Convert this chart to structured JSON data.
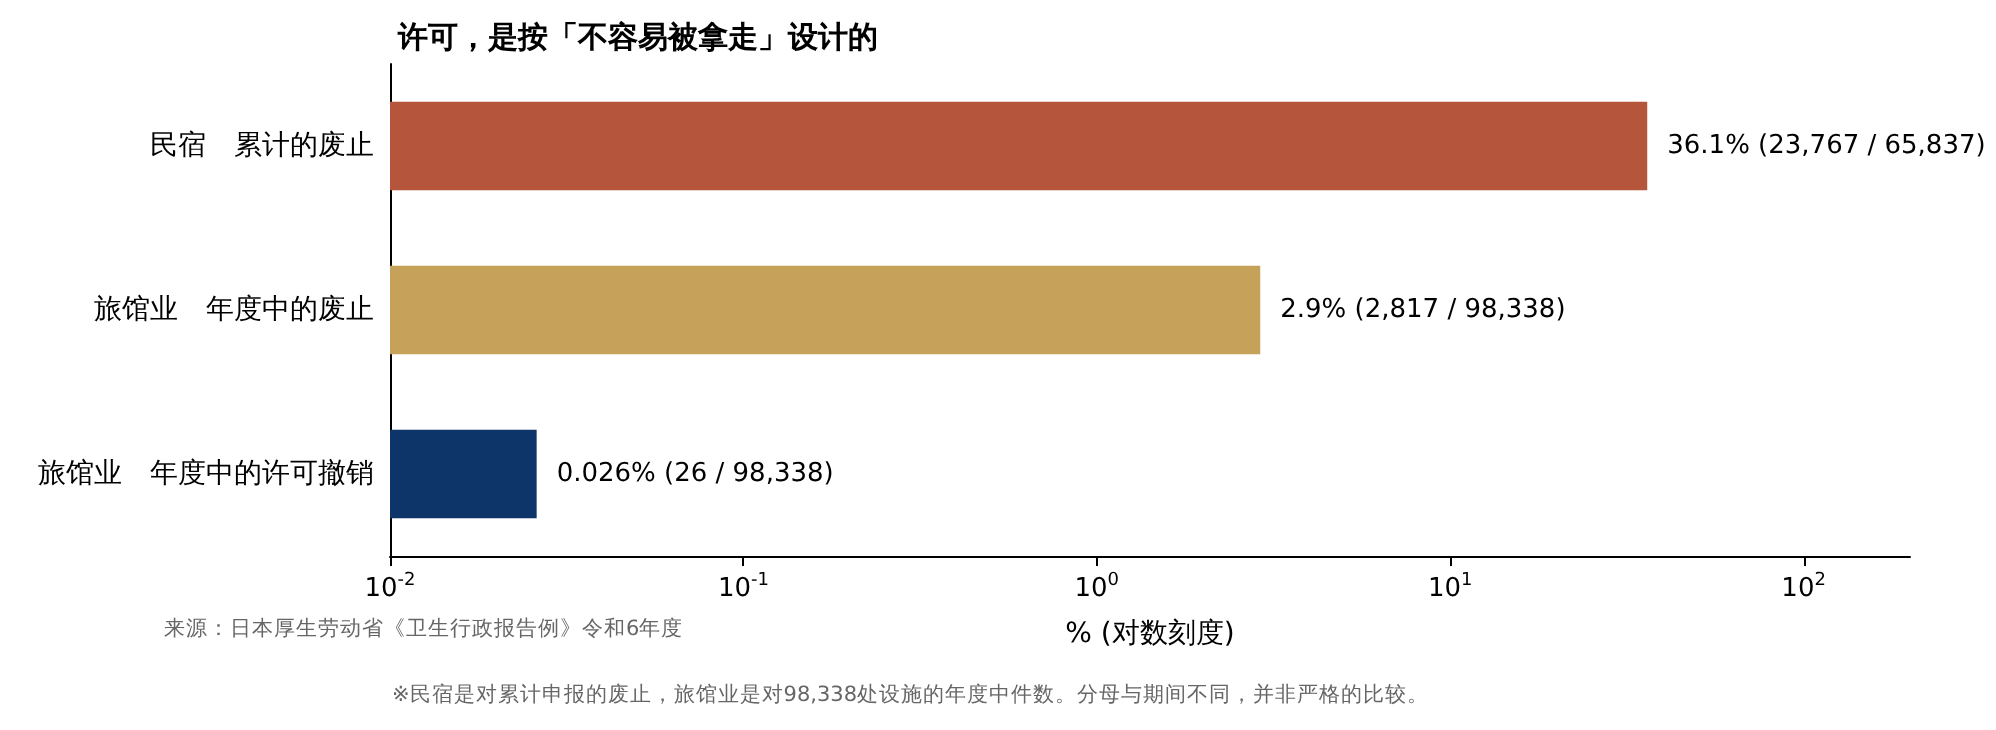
{
  "chart_data": {
    "type": "bar",
    "orientation": "horizontal",
    "title": "许可，是按「不容易被拿走」设计的",
    "categories": [
      "民宿　累计的废止",
      "旅馆业　年度中的废止",
      "旅馆业　年度中的许可撤销"
    ],
    "values": [
      36.1,
      2.9,
      0.026
    ],
    "colors": [
      "#b5553c",
      "#c6a15a",
      "#0e3569"
    ],
    "value_labels": [
      "36.1% (23,767 / 65,837)",
      "2.9% (2,817 / 98,338)",
      "0.026% (26 / 98,338)"
    ],
    "log": "x",
    "xlim": [
      0.01,
      200
    ],
    "xticks": [
      {
        "value": 0.01,
        "label": "10$^{-2}$"
      },
      {
        "value": 0.1,
        "label": "10$^{-1}$"
      },
      {
        "value": 1,
        "label": "10$^{0}$"
      },
      {
        "value": 10,
        "label": "10$^{1}$"
      },
      {
        "value": 100,
        "label": "10$^{2}$"
      }
    ],
    "xlabel": "% (对数刻度)",
    "grid": false,
    "annotations": [
      "来源：日本厚生劳动省《卫生行政报告例》令和6年度",
      "※民宿是对累计申报的废止，旅馆业是对98,338处设施的年度中件数。分母与期间不同，并非严格的比较。"
    ]
  }
}
